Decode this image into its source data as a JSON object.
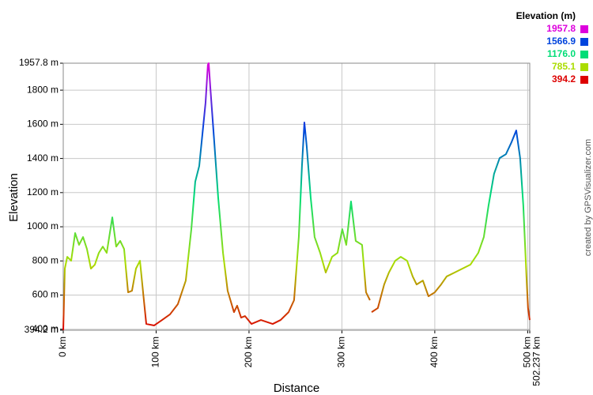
{
  "chart_data": {
    "type": "line",
    "y_axis_label": "Elevation",
    "x_axis_label": "Distance",
    "credit": "created by GPSVisualizer.com",
    "legend_title": "Elevation (m)",
    "legend": [
      {
        "value": 1957.8,
        "label": "1957.8",
        "color": "#dd00dd"
      },
      {
        "value": 1566.9,
        "label": "1566.9",
        "color": "#0044dd"
      },
      {
        "value": 1176,
        "label": "1176.0",
        "color": "#00dd77"
      },
      {
        "value": 785.1,
        "label": "785.1",
        "color": "#aadd00"
      },
      {
        "value": 394.2,
        "label": "394.2",
        "color": "#dd0000"
      }
    ],
    "xlim": [
      0,
      502.237
    ],
    "ylim": [
      394.2,
      1957.8
    ],
    "xticks": [
      {
        "value": 0,
        "label": "0 km"
      },
      {
        "value": 100,
        "label": "100 km"
      },
      {
        "value": 200,
        "label": "200 km"
      },
      {
        "value": 300,
        "label": "300 km"
      },
      {
        "value": 400,
        "label": "400 km"
      },
      {
        "value": 500,
        "label": "500 km"
      },
      {
        "value": 502.237,
        "label": "502.237 km"
      }
    ],
    "yticks": [
      {
        "value": 394.2,
        "label": "394.2 m"
      },
      {
        "value": 400,
        "label": "400 m"
      },
      {
        "value": 600,
        "label": "600 m"
      },
      {
        "value": 800,
        "label": "800 m"
      },
      {
        "value": 1000,
        "label": "1000 m"
      },
      {
        "value": 1200,
        "label": "1200 m"
      },
      {
        "value": 1400,
        "label": "1400 m"
      },
      {
        "value": 1600,
        "label": "1600 m"
      },
      {
        "value": 1800,
        "label": "1800 m"
      },
      {
        "value": 1957.8,
        "label": "1957.8 m"
      }
    ],
    "grid": true,
    "x": [
      0,
      1.7,
      4.3,
      8.5,
      12.8,
      17,
      21.3,
      25.5,
      29.8,
      34,
      38.3,
      42.6,
      46.8,
      52.8,
      57,
      61.3,
      65.5,
      69.8,
      74,
      78.3,
      82.6,
      86.8,
      89.4,
      97.9,
      106.4,
      114.9,
      123.4,
      131.9,
      137.9,
      142.1,
      146.4,
      149.8,
      153.2,
      155.7,
      156.6,
      158.3,
      162.6,
      166.8,
      172,
      177,
      183.8,
      187.2,
      191.5,
      195.7,
      202.6,
      212.8,
      225.5,
      234,
      242.6,
      248.5,
      253.6,
      257,
      259.6,
      262.1,
      266.4,
      270.6,
      276.6,
      282.6,
      289.4,
      295.3,
      300.4,
      304.7,
      309.8,
      314.9,
      321.7,
      326,
      330.2,
      331,
      332,
      338.7,
      345.5,
      350.6,
      357.4,
      363.4,
      370.2,
      376.2,
      380.4,
      387.2,
      393.2,
      400,
      406.8,
      412.8,
      421.3,
      429.8,
      438.3,
      446.8,
      452.8,
      457.9,
      463.8,
      469.8,
      476.6,
      482.6,
      487.7,
      491.9,
      495.3,
      498.7,
      500.4,
      502.237
    ],
    "series": [
      {
        "name": "Elevation",
        "values": [
          394.2,
          755,
          824,
          801,
          963,
          894,
          940,
          870,
          755,
          778,
          847,
          884,
          847,
          1055,
          884,
          917,
          870,
          616,
          625,
          755,
          801,
          570,
          431,
          422,
          454,
          487,
          547,
          685,
          986,
          1264,
          1356,
          1541,
          1726,
          1948,
          1957.8,
          1819,
          1495,
          1171,
          847,
          625,
          500,
          538,
          468,
          477,
          431,
          454,
          431,
          454,
          500,
          570,
          940,
          1356,
          1611,
          1472,
          1171,
          940,
          847,
          732,
          824,
          847,
          986,
          894,
          1148,
          917,
          894,
          616,
          570,
          null,
          500,
          524,
          662,
          732,
          801,
          824,
          801,
          709,
          662,
          685,
          593,
          616,
          662,
          709,
          732,
          755,
          778,
          847,
          940,
          1125,
          1310,
          1402,
          1425,
          1495,
          1564,
          1402,
          1125,
          709,
          524,
          454
        ]
      }
    ]
  }
}
